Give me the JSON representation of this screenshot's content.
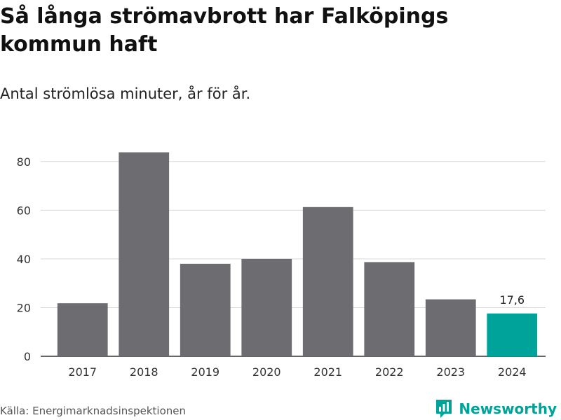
{
  "title": "Så långa strömavbrott har Falköpings kommun haft",
  "subtitle": "Antal strömlösa minuter, år för år.",
  "source": "Källa: Energimarknadsinspektionen",
  "brand": {
    "name": "Newsworthy",
    "icon": "newsworthy-logo-icon",
    "color": "#00a39a"
  },
  "colors": {
    "bar": "#6d6c71",
    "highlight": "#00a39a",
    "grid": "#d9d9d9",
    "axis": "#333333"
  },
  "chart_data": {
    "type": "bar",
    "categories": [
      "2017",
      "2018",
      "2019",
      "2020",
      "2021",
      "2022",
      "2023",
      "2024"
    ],
    "values": [
      21.8,
      83.8,
      38.0,
      40.0,
      61.3,
      38.7,
      23.4,
      17.6
    ],
    "highlight_index": 7,
    "data_labels": [
      {
        "index": 7,
        "text": "17,6"
      }
    ],
    "yticks": [
      "0",
      "20",
      "40",
      "60",
      "80"
    ],
    "ylim": [
      0,
      90
    ],
    "grid": true,
    "legend": "none"
  }
}
